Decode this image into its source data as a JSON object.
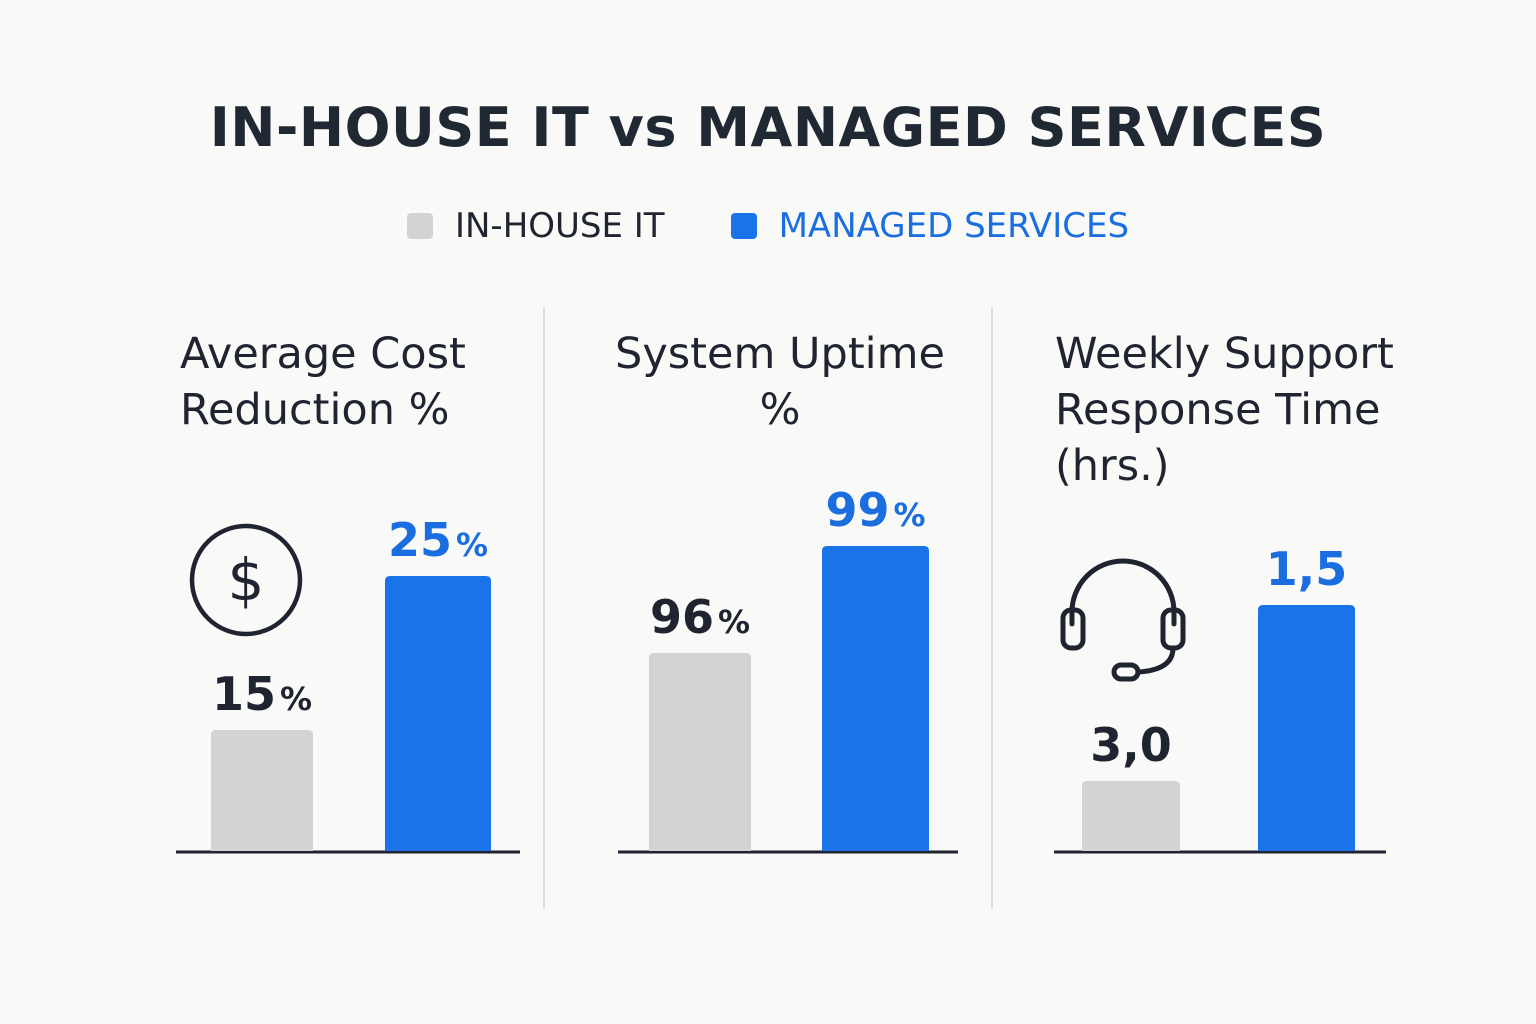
{
  "title": "IN-HOUSE IT vs MANAGED SERVICES",
  "legend": [
    {
      "label": "IN-HOUSE IT",
      "color": "#d3d3d3",
      "text_color": "#1f2430"
    },
    {
      "label": "MANAGED SERVICES",
      "color": "#1a73e8",
      "text_color": "#1a6ee0"
    }
  ],
  "panels": [
    {
      "title_lines": [
        "Average Cost",
        "Reduction %"
      ],
      "icon": "dollar-circle-icon"
    },
    {
      "title_lines": [
        "System Uptime",
        "%"
      ],
      "icon": ""
    },
    {
      "title_lines": [
        "Weekly Support",
        "Response Time",
        "(hrs.)"
      ],
      "icon": "headset-icon"
    }
  ],
  "chart_data": [
    {
      "type": "bar",
      "title": "Average Cost Reduction %",
      "categories": [
        "IN-HOUSE IT",
        "MANAGED SERVICES"
      ],
      "values": [
        15,
        25
      ],
      "labels": [
        {
          "num": "15",
          "unit": "%"
        },
        {
          "num": "25",
          "unit": "%"
        }
      ],
      "colors": [
        "#d3d3d3",
        "#1a73e8"
      ]
    },
    {
      "type": "bar",
      "title": "System Uptime %",
      "categories": [
        "IN-HOUSE IT",
        "MANAGED SERVICES"
      ],
      "values": [
        96,
        99
      ],
      "labels": [
        {
          "num": "96",
          "unit": "%"
        },
        {
          "num": "99",
          "unit": "%"
        }
      ],
      "colors": [
        "#d3d3d3",
        "#1a73e8"
      ]
    },
    {
      "type": "bar",
      "title": "Weekly Support Response Time (hrs.)",
      "categories": [
        "IN-HOUSE IT",
        "MANAGED SERVICES"
      ],
      "values": [
        3.0,
        1.5
      ],
      "labels": [
        {
          "num": "3,0",
          "unit": ""
        },
        {
          "num": "1,5",
          "unit": ""
        }
      ],
      "colors": [
        "#d3d3d3",
        "#1a73e8"
      ]
    }
  ]
}
